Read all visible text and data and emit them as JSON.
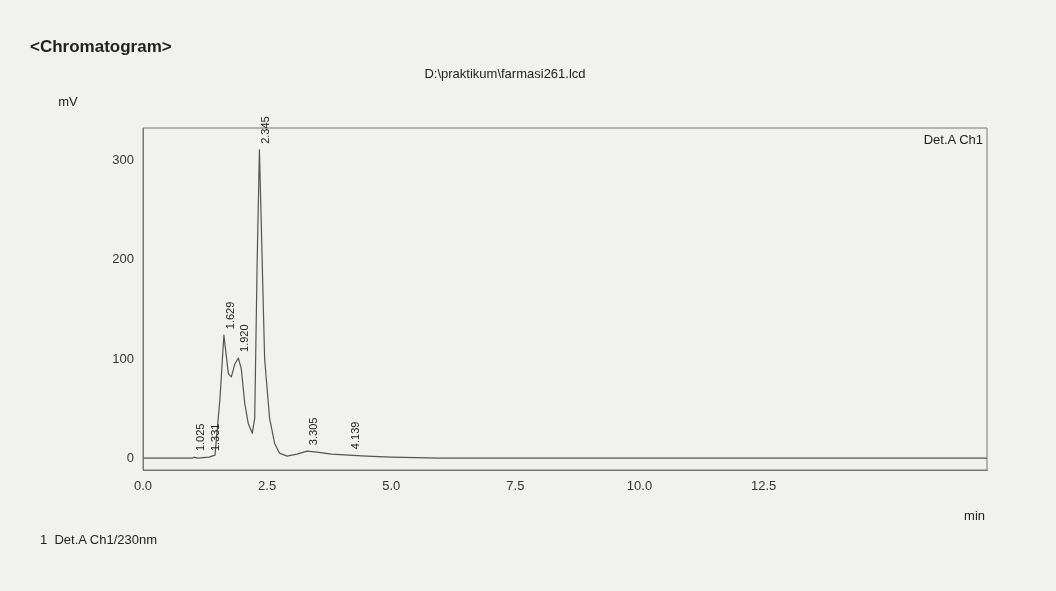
{
  "chart_data": {
    "type": "line",
    "title": "<Chromatogram>",
    "subtitle": "D:\\praktikum\\farmasi261.lcd",
    "xlabel": "min",
    "ylabel": "mV",
    "x": [
      0,
      1.0,
      1.025,
      1.1,
      1.331,
      1.45,
      1.55,
      1.629,
      1.72,
      1.78,
      1.85,
      1.92,
      1.98,
      2.05,
      2.12,
      2.2,
      2.25,
      2.3,
      2.345,
      2.39,
      2.45,
      2.55,
      2.65,
      2.75,
      2.9,
      3.1,
      3.305,
      3.5,
      3.8,
      4.139,
      4.5,
      5.0,
      6.0,
      17
    ],
    "series": [
      {
        "color": "#555555",
        "values": [
          0,
          0,
          1,
          0,
          1,
          3,
          60,
          124,
          85,
          82,
          95,
          101,
          90,
          55,
          35,
          25,
          40,
          200,
          311,
          220,
          100,
          40,
          15,
          5,
          2,
          4,
          7,
          6,
          4,
          3,
          2,
          1,
          0,
          0
        ]
      }
    ],
    "xlim": [
      0,
      17
    ],
    "ylim": [
      -12,
      333
    ],
    "xticks": [
      {
        "value": 0,
        "label": "0.0"
      },
      {
        "value": 2.5,
        "label": "2.5"
      },
      {
        "value": 5,
        "label": "5.0"
      },
      {
        "value": 7.5,
        "label": "7.5"
      },
      {
        "value": 10,
        "label": "10.0"
      },
      {
        "value": 12.5,
        "label": "12.5"
      }
    ],
    "yticks": [
      0,
      100,
      200,
      300
    ],
    "grid": false,
    "legend": false,
    "marker": "none",
    "line_style": "solid",
    "annotations": [
      {
        "text": "1.025",
        "x": 1.025,
        "y": 1
      },
      {
        "text": "1.331",
        "x": 1.331,
        "y": 1
      },
      {
        "text": "1.629",
        "x": 1.629,
        "y": 124
      },
      {
        "text": "1.920",
        "x": 1.92,
        "y": 101
      },
      {
        "text": "2.345",
        "x": 2.345,
        "y": 311
      },
      {
        "text": "3.305",
        "x": 3.305,
        "y": 7
      },
      {
        "text": "4.139",
        "x": 4.139,
        "y": 3
      },
      "Det.A Ch1",
      "1  Det.A Ch1/230nm"
    ]
  }
}
